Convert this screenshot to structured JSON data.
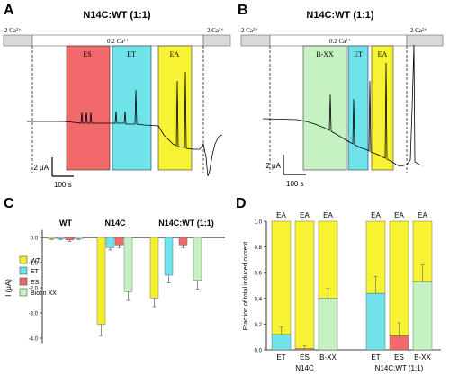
{
  "panels": {
    "A": {
      "letter": "A",
      "title": "N14C:WT (1:1)",
      "ca_left": "2 Ca²⁺",
      "ca_mid": "0.2 Ca²⁺",
      "ca_right": "2 Ca²⁺",
      "regions": [
        "ES",
        "ET",
        "EA"
      ],
      "scale_y": "2 μA",
      "scale_x": "100 s"
    },
    "B": {
      "letter": "B",
      "title": "N14C:WT (1:1)",
      "ca_left": "2 Ca²⁺",
      "ca_mid": "0.2 Ca²⁺",
      "ca_right": "2 Ca²⁺",
      "regions": [
        "B-XX",
        "ET",
        "EA"
      ],
      "scale_y": "2 μA",
      "scale_x": "100 s"
    },
    "C": {
      "letter": "C"
    },
    "D": {
      "letter": "D"
    }
  },
  "colors": {
    "ES": "#f06a6a",
    "ET": "#6fe3ea",
    "EA": "#f7f233",
    "BXX": "#c6f1c2",
    "WT": "#f4ee2e"
  },
  "chart_data": [
    {
      "type": "bar",
      "panel": "C",
      "groups": [
        "WT",
        "N14C",
        "N14C:WT (1:1)"
      ],
      "ylabel": "I (μA)",
      "ylim": [
        -4.2,
        0.3
      ],
      "yticks": [
        0.0,
        -1.0,
        -2.0,
        -3.0,
        -4.0
      ],
      "ytick_labels": [
        "0.0",
        "-1.0",
        "-2.0",
        "-3.0",
        "-4.0"
      ],
      "legend": [
        "WT",
        "ET",
        "ES",
        "Biotin XX"
      ],
      "legend_position": "left",
      "series": [
        {
          "name": "WT",
          "color": "#f4ee2e",
          "values": [
            -0.05,
            -3.45,
            -2.4
          ],
          "errors": [
            0.03,
            0.45,
            0.35
          ]
        },
        {
          "name": "ET",
          "color": "#6fe3ea",
          "values": [
            -0.05,
            -0.4,
            -1.5
          ],
          "errors": [
            0.03,
            0.1,
            0.3
          ]
        },
        {
          "name": "ES",
          "color": "#f06a6a",
          "values": [
            -0.1,
            -0.3,
            -0.3
          ],
          "errors": [
            0.05,
            0.1,
            0.1
          ]
        },
        {
          "name": "Biotin XX",
          "color": "#c6f1c2",
          "values": [
            -0.05,
            -2.15,
            -1.7
          ],
          "errors": [
            0.03,
            0.35,
            0.35
          ]
        }
      ]
    },
    {
      "type": "bar",
      "panel": "D",
      "stacked": true,
      "ylabel": "Fraction of total induced current",
      "ylim": [
        0,
        1
      ],
      "yticks": [
        "0.0",
        "0.2",
        "0.4",
        "0.6",
        "0.8",
        "1.0"
      ],
      "top_labels": [
        "EA",
        "EA",
        "EA",
        "EA",
        "EA",
        "EA"
      ],
      "categories": [
        "ET",
        "ES",
        "B-XX",
        "ET",
        "ES",
        "B-XX"
      ],
      "groups": [
        {
          "label": "N14C",
          "bars": [
            0,
            1,
            2
          ]
        },
        {
          "label": "N14C:WT (1:1)",
          "bars": [
            3,
            4,
            5
          ]
        }
      ],
      "series": [
        {
          "name": "first",
          "values": [
            0.12,
            0.01,
            0.4,
            0.44,
            0.11,
            0.53
          ],
          "colors": [
            "#6fe3ea",
            "#f06a6a",
            "#c6f1c2",
            "#6fe3ea",
            "#f06a6a",
            "#c6f1c2"
          ],
          "errors": [
            0.06,
            0.02,
            0.08,
            0.13,
            0.1,
            0.13
          ]
        },
        {
          "name": "EA",
          "values": [
            0.88,
            0.99,
            0.6,
            0.56,
            0.89,
            0.47
          ],
          "colors": [
            "#f7f233",
            "#f7f233",
            "#f7f233",
            "#f7f233",
            "#f7f233",
            "#f7f233"
          ]
        }
      ]
    }
  ]
}
